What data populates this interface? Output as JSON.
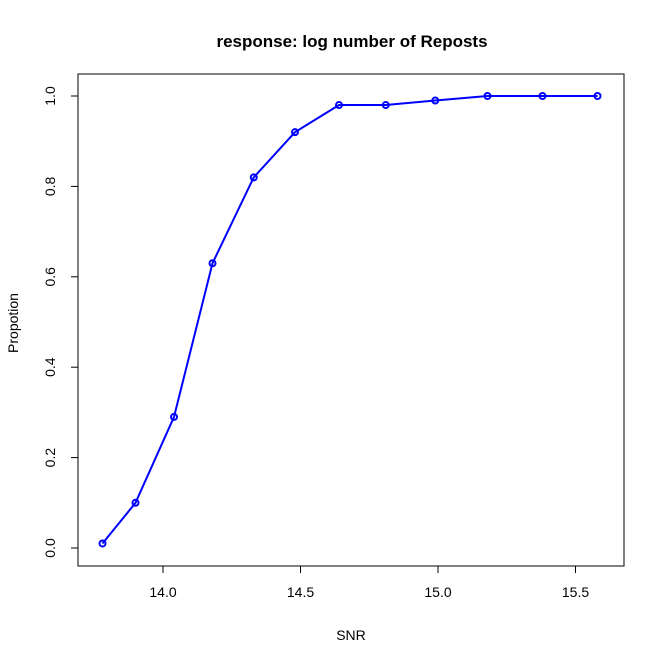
{
  "chart_data": {
    "type": "line",
    "title": "response: log number of Reposts",
    "xlabel": "SNR",
    "ylabel": "Propotion",
    "xlim": [
      13.76,
      15.6
    ],
    "ylim": [
      0.0,
      1.0
    ],
    "x_ticks": [
      14.0,
      14.5,
      15.0,
      15.5
    ],
    "x_tick_labels": [
      "14.0",
      "14.5",
      "15.0",
      "15.5"
    ],
    "y_ticks": [
      0.0,
      0.2,
      0.4,
      0.6,
      0.8,
      1.0
    ],
    "y_tick_labels": [
      "0.0",
      "0.2",
      "0.4",
      "0.6",
      "0.8",
      "1.0"
    ],
    "grid": false,
    "color": "#0000ff",
    "series": [
      {
        "x": [
          13.78,
          13.9,
          14.04,
          14.18,
          14.33,
          14.48,
          14.64,
          14.81,
          14.99,
          15.18,
          15.38,
          15.58
        ],
        "y": [
          0.01,
          0.1,
          0.29,
          0.63,
          0.82,
          0.92,
          0.98,
          0.98,
          0.99,
          1.0,
          1.0,
          1.0
        ]
      }
    ]
  }
}
